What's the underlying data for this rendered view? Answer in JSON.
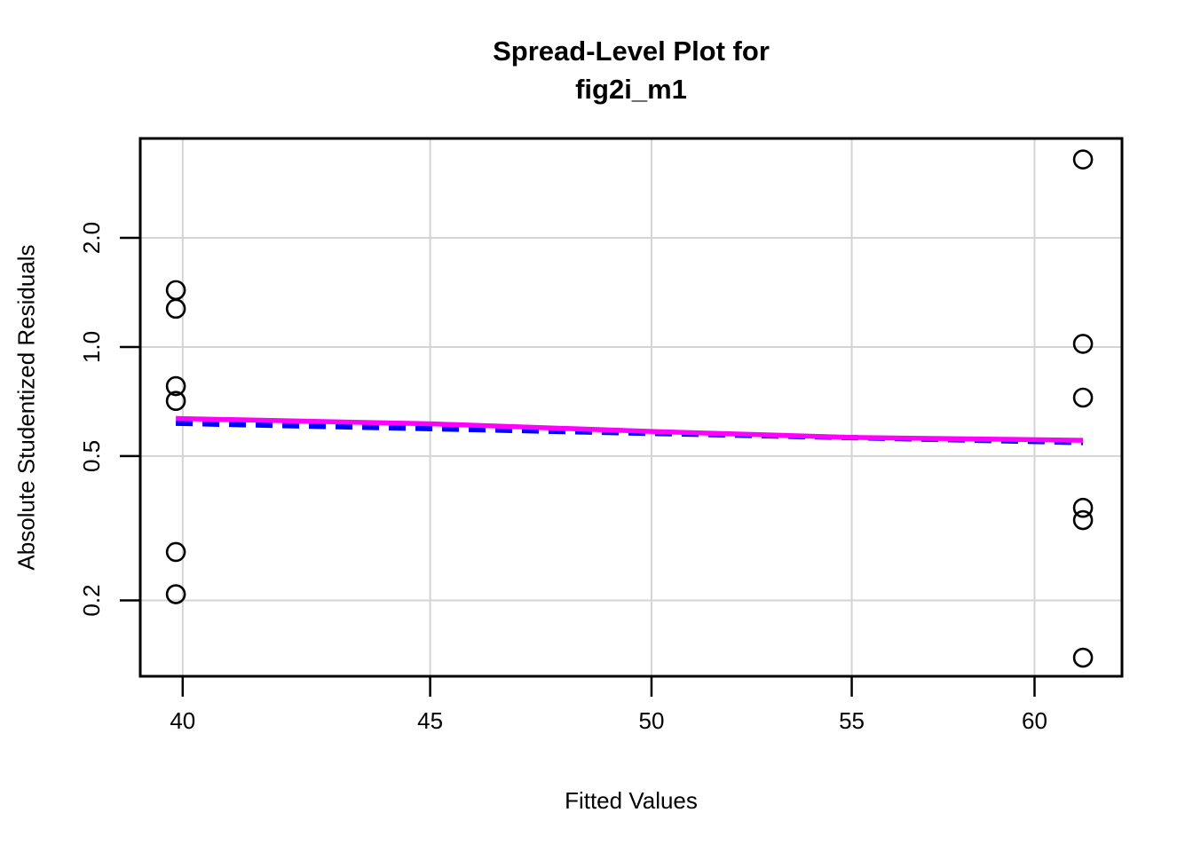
{
  "figure": {
    "background_color": "#ffffff",
    "title_line1": "Spread-Level Plot for",
    "title_line2": "fig2i_m1"
  },
  "chart_data": {
    "type": "scatter",
    "title": "Spread-Level Plot for fig2i_m1",
    "xlabel": "Fitted Values",
    "ylabel": "Absolute Studentized Residuals",
    "x_scale": "log",
    "y_scale": "log",
    "xlim": [
      39.2,
      62.55
    ],
    "ylim": [
      0.1235,
      3.76
    ],
    "x_tick_values": [
      40,
      45,
      50,
      55,
      60
    ],
    "x_tick_labels": [
      "40",
      "45",
      "50",
      "55",
      "60"
    ],
    "y_tick_values": [
      0.2,
      0.5,
      1.0,
      2.0
    ],
    "y_tick_labels": [
      "0.2",
      "0.5",
      "1.0",
      "2.0"
    ],
    "grid": true,
    "grid_color": "#d4d4d4",
    "axis_color": "#000000",
    "point_style": {
      "shape": "open-circle",
      "color": "#000000",
      "radius": 10,
      "stroke_width": 2.6
    },
    "points": [
      {
        "x": 39.87,
        "y": 1.435
      },
      {
        "x": 39.87,
        "y": 1.275
      },
      {
        "x": 39.87,
        "y": 0.78
      },
      {
        "x": 39.87,
        "y": 0.71
      },
      {
        "x": 39.87,
        "y": 0.272
      },
      {
        "x": 39.87,
        "y": 0.208
      },
      {
        "x": 61.4,
        "y": 3.29
      },
      {
        "x": 61.4,
        "y": 1.02
      },
      {
        "x": 61.4,
        "y": 0.725
      },
      {
        "x": 61.4,
        "y": 0.36
      },
      {
        "x": 61.4,
        "y": 0.333
      },
      {
        "x": 61.4,
        "y": 0.139
      }
    ],
    "series": [
      {
        "name": "power-fit-line",
        "color": "#0000ff",
        "style": "dashed",
        "width": 6,
        "dash": [
          19,
          11
        ],
        "points": [
          [
            39.87,
            0.616
          ],
          [
            61.4,
            0.545
          ]
        ]
      },
      {
        "name": "lowess-smooth-line",
        "color": "#ff00ff",
        "style": "solid",
        "width": 5.5,
        "dash": null,
        "points": [
          [
            39.87,
            0.635
          ],
          [
            45,
            0.614
          ],
          [
            50,
            0.585
          ],
          [
            55,
            0.563
          ],
          [
            61.4,
            0.553
          ]
        ]
      }
    ],
    "legend": null
  }
}
